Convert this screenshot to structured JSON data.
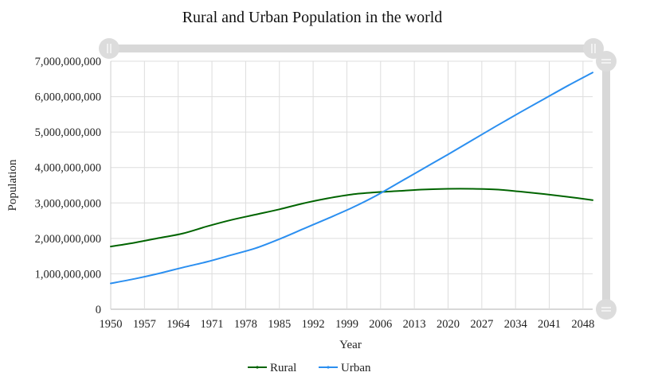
{
  "chart_data": {
    "type": "line",
    "title": "Rural and Urban Population in the world",
    "xlabel": "Year",
    "ylabel": "Population",
    "xlim": [
      1950,
      2050
    ],
    "ylim": [
      0,
      7000000000
    ],
    "x_ticks": [
      "1950",
      "1957",
      "1964",
      "1971",
      "1978",
      "1985",
      "1992",
      "1999",
      "2006",
      "2013",
      "2020",
      "2027",
      "2034",
      "2041",
      "2048"
    ],
    "y_ticks": [
      "0",
      "1,000,000,000",
      "2,000,000,000",
      "3,000,000,000",
      "4,000,000,000",
      "5,000,000,000",
      "6,000,000,000",
      "7,000,000,000"
    ],
    "grid": true,
    "legend_position": "bottom",
    "x": [
      1950,
      1955,
      1960,
      1965,
      1970,
      1975,
      1980,
      1985,
      1990,
      1995,
      2000,
      2005,
      2010,
      2015,
      2020,
      2025,
      2030,
      2035,
      2040,
      2045,
      2050
    ],
    "series": [
      {
        "name": "Rural",
        "color": "#006400",
        "values": [
          1770000000,
          1880000000,
          2010000000,
          2140000000,
          2340000000,
          2520000000,
          2670000000,
          2820000000,
          2990000000,
          3130000000,
          3240000000,
          3300000000,
          3340000000,
          3380000000,
          3400000000,
          3400000000,
          3380000000,
          3320000000,
          3250000000,
          3170000000,
          3080000000
        ]
      },
      {
        "name": "Urban",
        "color": "#2b8ff0",
        "values": [
          730000000,
          860000000,
          1010000000,
          1180000000,
          1340000000,
          1530000000,
          1720000000,
          1980000000,
          2270000000,
          2560000000,
          2860000000,
          3200000000,
          3590000000,
          3980000000,
          4370000000,
          4770000000,
          5170000000,
          5560000000,
          5940000000,
          6320000000,
          6680000000
        ]
      }
    ]
  }
}
